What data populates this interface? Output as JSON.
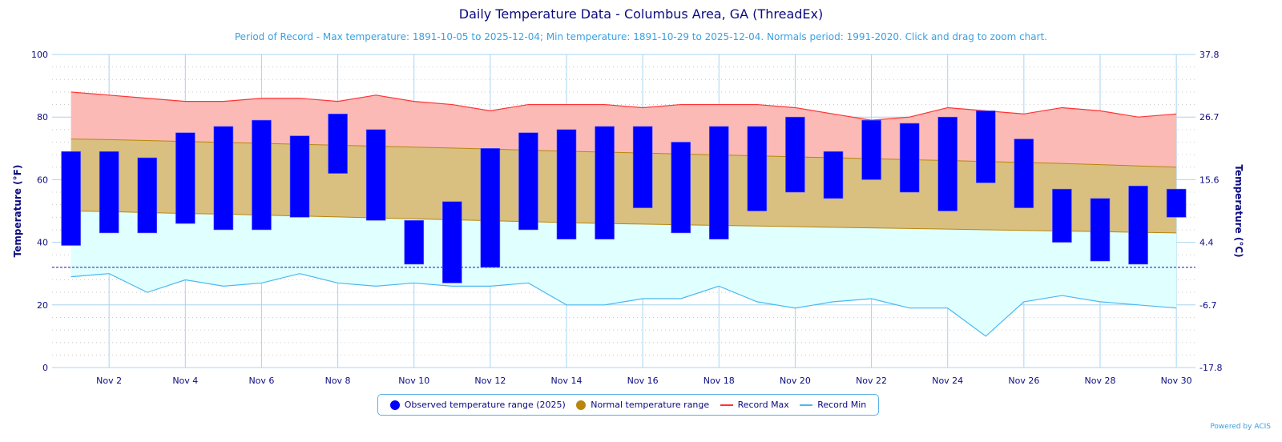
{
  "title": "Daily Temperature Data - Columbus Area, GA (ThreadEx)",
  "subtitle": "Period of Record - Max temperature: 1891-10-05 to 2025-12-04; Min temperature: 1891-10-29 to 2025-12-04. Normals period: 1991-2020. Click and drag to zoom chart.",
  "credit": "Powered by ACIS",
  "legend": {
    "observed": "Observed temperature range (2025)",
    "normal": "Normal temperature range",
    "record_max": "Record Max",
    "record_min": "Record Min"
  },
  "colors": {
    "observed": "#0000ff",
    "normal_fill": "#d9c080",
    "normal_line": "#b8860b",
    "record_max_fill": "#fbbab5",
    "record_max_line": "#ff3333",
    "record_min_fill": "#e0ffff",
    "record_min_line": "#4ab8f0",
    "freezing": "#1a1ab0",
    "axis_text": "#0b0b80"
  },
  "chart_data": {
    "type": "bar",
    "title": "Daily Temperature Data - Columbus Area, GA (ThreadEx)",
    "ylabel": "Temperature (°F)",
    "ylabel_right": "Temperature (°C)",
    "ylim": [
      0,
      100
    ],
    "yticks": [
      "0",
      "20",
      "40",
      "60",
      "80",
      "100"
    ],
    "yticks_right": [
      "-17.8",
      "-6.7",
      "4.4",
      "15.6",
      "26.7",
      "37.8"
    ],
    "days": [
      1,
      2,
      3,
      4,
      5,
      6,
      7,
      8,
      9,
      10,
      11,
      12,
      13,
      14,
      15,
      16,
      17,
      18,
      19,
      20,
      21,
      22,
      23,
      24,
      25,
      26,
      27,
      28,
      29,
      30
    ],
    "xtick_days": [
      2,
      4,
      6,
      8,
      10,
      12,
      14,
      16,
      18,
      20,
      22,
      24,
      26,
      28,
      30
    ],
    "xtick_labels": [
      "Nov 2",
      "Nov 4",
      "Nov 6",
      "Nov 8",
      "Nov 10",
      "Nov 12",
      "Nov 14",
      "Nov 16",
      "Nov 18",
      "Nov 20",
      "Nov 22",
      "Nov 24",
      "Nov 26",
      "Nov 28",
      "Nov 30"
    ],
    "observed_max": [
      69,
      69,
      67,
      75,
      77,
      79,
      74,
      81,
      76,
      47,
      53,
      70,
      75,
      76,
      77,
      77,
      72,
      77,
      77,
      80,
      69,
      79,
      78,
      80,
      82,
      73,
      57,
      54,
      58,
      57
    ],
    "observed_min": [
      39,
      43,
      43,
      46,
      44,
      44,
      48,
      62,
      47,
      33,
      27,
      32,
      44,
      41,
      41,
      51,
      43,
      41,
      50,
      56,
      54,
      60,
      56,
      50,
      59,
      51,
      40,
      34,
      33,
      48
    ],
    "normal_max": [
      73,
      72.8,
      72.5,
      72.2,
      71.9,
      71.6,
      71.3,
      71,
      70.7,
      70.4,
      70.1,
      69.8,
      69.4,
      69.1,
      68.8,
      68.5,
      68.2,
      67.9,
      67.6,
      67.3,
      67,
      66.7,
      66.4,
      66.1,
      65.8,
      65.5,
      65.2,
      64.8,
      64.4,
      64
    ],
    "normal_min": [
      50,
      49.8,
      49.5,
      49.2,
      49,
      48.7,
      48.4,
      48.1,
      47.8,
      47.5,
      47.2,
      46.9,
      46.6,
      46.3,
      46,
      45.8,
      45.6,
      45.4,
      45.2,
      45,
      44.8,
      44.6,
      44.4,
      44.2,
      44,
      43.8,
      43.6,
      43.4,
      43.2,
      43
    ],
    "record_max": [
      88,
      87,
      86,
      85,
      85,
      86,
      86,
      85,
      87,
      85,
      84,
      82,
      84,
      84,
      84,
      83,
      84,
      84,
      84,
      83,
      81,
      79,
      80,
      83,
      82,
      81,
      83,
      82,
      80,
      81
    ],
    "record_min": [
      29,
      30,
      24,
      28,
      26,
      27,
      30,
      27,
      26,
      27,
      26,
      26,
      27,
      20,
      20,
      22,
      22,
      26,
      21,
      19,
      21,
      22,
      19,
      19,
      10,
      21,
      23,
      21,
      20,
      19
    ],
    "freezing_line": 32,
    "legend_position": "bottom-center"
  }
}
